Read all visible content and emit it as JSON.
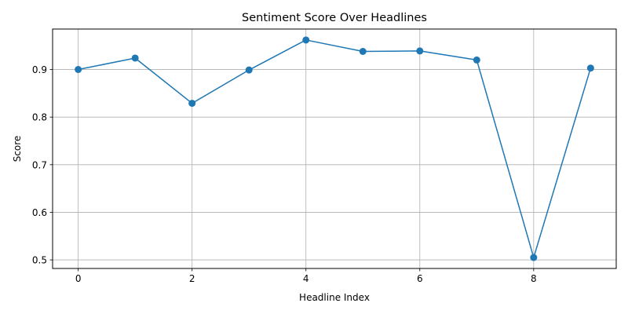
{
  "chart_data": {
    "type": "line",
    "title": "Sentiment Score Over Headlines",
    "xlabel": "Headline Index",
    "ylabel": "Score",
    "xlim": [
      -0.45,
      9.45
    ],
    "ylim": [
      0.482,
      0.985
    ],
    "xticks": [
      0,
      2,
      4,
      6,
      8
    ],
    "yticks": [
      0.5,
      0.6,
      0.7,
      0.8,
      0.9
    ],
    "grid": true,
    "series": [
      {
        "color": "#1f77b4",
        "marker": "circle",
        "x": [
          0,
          1,
          2,
          3,
          4,
          5,
          6,
          7,
          8,
          9
        ],
        "y": [
          0.9,
          0.924,
          0.829,
          0.899,
          0.962,
          0.938,
          0.939,
          0.92,
          0.505,
          0.903
        ]
      }
    ]
  }
}
